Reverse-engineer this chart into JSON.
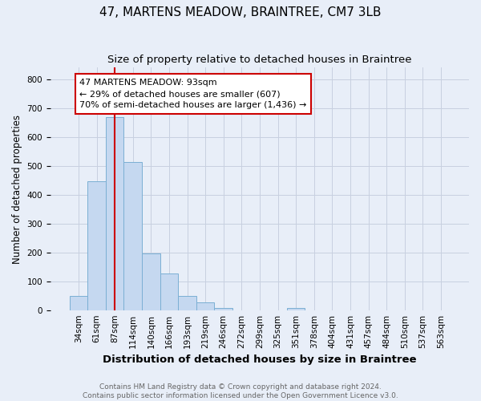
{
  "title": "47, MARTENS MEADOW, BRAINTREE, CM7 3LB",
  "subtitle": "Size of property relative to detached houses in Braintree",
  "xlabel": "Distribution of detached houses by size in Braintree",
  "ylabel": "Number of detached properties",
  "bar_labels": [
    "34sqm",
    "61sqm",
    "87sqm",
    "114sqm",
    "140sqm",
    "166sqm",
    "193sqm",
    "219sqm",
    "246sqm",
    "272sqm",
    "299sqm",
    "325sqm",
    "351sqm",
    "378sqm",
    "404sqm",
    "431sqm",
    "457sqm",
    "484sqm",
    "510sqm",
    "537sqm",
    "563sqm"
  ],
  "bar_values": [
    50,
    447,
    668,
    513,
    197,
    127,
    49,
    26,
    8,
    0,
    0,
    0,
    8,
    0,
    0,
    0,
    0,
    0,
    0,
    0,
    0
  ],
  "bar_color": "#c5d8f0",
  "bar_edge_color": "#7bafd4",
  "red_line_x": 2.0,
  "annotation_text": "47 MARTENS MEADOW: 93sqm\n← 29% of detached houses are smaller (607)\n70% of semi-detached houses are larger (1,436) →",
  "annotation_box_color": "#ffffff",
  "annotation_box_edge": "#cc0000",
  "ylim": [
    0,
    840
  ],
  "yticks": [
    0,
    100,
    200,
    300,
    400,
    500,
    600,
    700,
    800
  ],
  "footnote": "Contains HM Land Registry data © Crown copyright and database right 2024.\nContains public sector information licensed under the Open Government Licence v3.0.",
  "bg_color": "#e8eef8",
  "plot_bg_color": "#e8eef8",
  "grid_color": "#c8d0e0",
  "title_fontsize": 11,
  "subtitle_fontsize": 9.5,
  "xlabel_fontsize": 9.5,
  "ylabel_fontsize": 8.5,
  "tick_fontsize": 7.5,
  "annotation_fontsize": 8,
  "footnote_fontsize": 6.5
}
